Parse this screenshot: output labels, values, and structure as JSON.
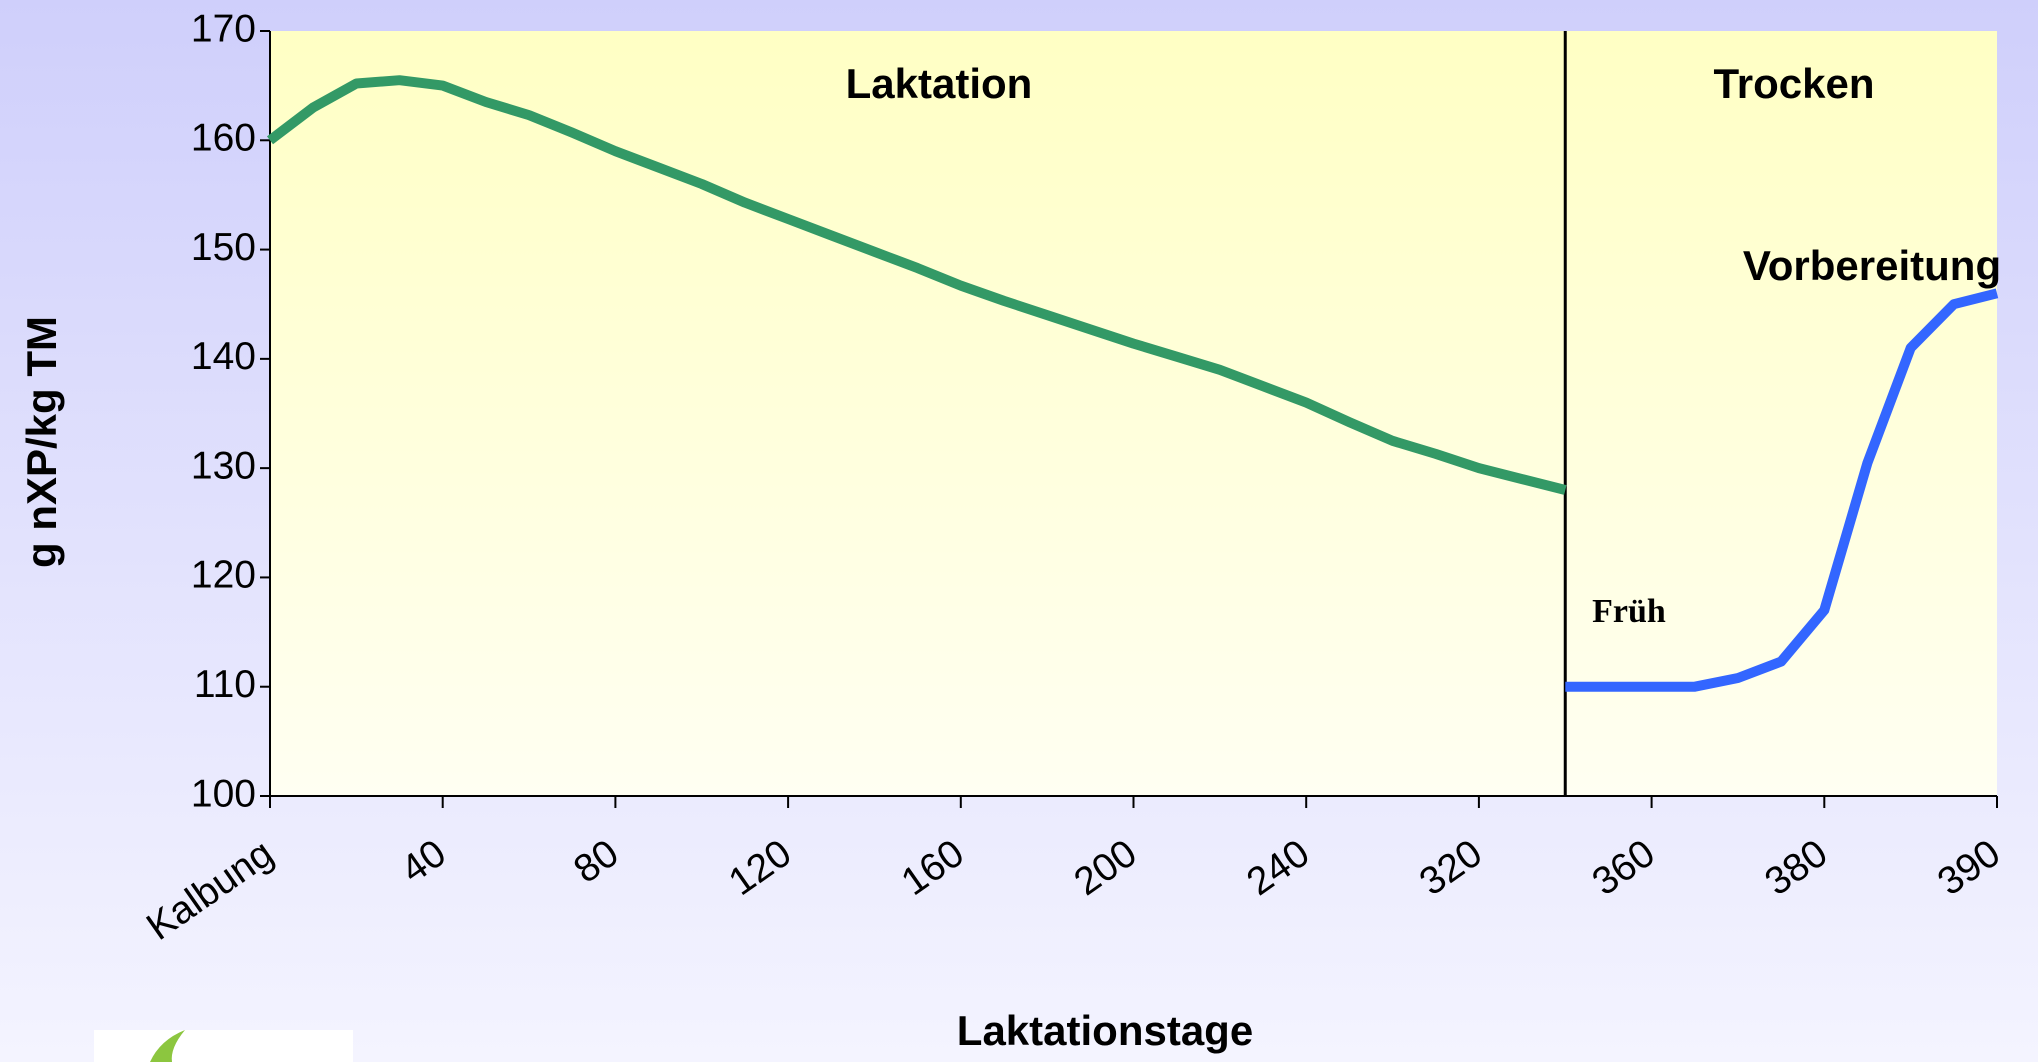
{
  "chart_data": {
    "type": "line",
    "xlabel": "Laktationstage",
    "ylabel": "g nXP/kg TM",
    "categories": [
      "Kalbung",
      null,
      null,
      null,
      "40",
      null,
      null,
      null,
      "80",
      null,
      null,
      null,
      "120",
      null,
      null,
      null,
      "160",
      null,
      null,
      null,
      "200",
      null,
      null,
      null,
      "240",
      null,
      null,
      null,
      "320",
      null,
      null,
      null,
      "360",
      null,
      null,
      null,
      "380",
      null,
      null,
      null,
      "390"
    ],
    "series": [
      {
        "color": "#339966",
        "values": [
          160,
          163,
          165.2,
          165.5,
          165,
          163.5,
          162.3,
          160.7,
          159,
          157.5,
          156,
          154.3,
          152.8,
          151.3,
          149.8,
          148.3,
          146.7,
          145.3,
          144,
          142.7,
          141.4,
          140.2,
          139,
          137.5,
          136,
          134.2,
          132.5,
          131.3,
          130,
          129,
          128,
          null,
          null,
          null,
          null,
          null,
          null,
          null,
          null,
          null,
          null
        ]
      },
      {
        "color": "#3366ff",
        "values": [
          null,
          null,
          null,
          null,
          null,
          null,
          null,
          null,
          null,
          null,
          null,
          null,
          null,
          null,
          null,
          null,
          null,
          null,
          null,
          null,
          null,
          null,
          null,
          null,
          null,
          null,
          null,
          null,
          null,
          null,
          110,
          110,
          110,
          110,
          110.8,
          112.3,
          117,
          130.5,
          141,
          145,
          146
        ]
      }
    ],
    "ylim": [
      100,
      170
    ],
    "yticks": [
      100,
      110,
      120,
      130,
      140,
      150,
      160,
      170
    ],
    "annotations": [
      "Laktation",
      "Trocken",
      "Vorbereitung",
      "Früh"
    ]
  }
}
